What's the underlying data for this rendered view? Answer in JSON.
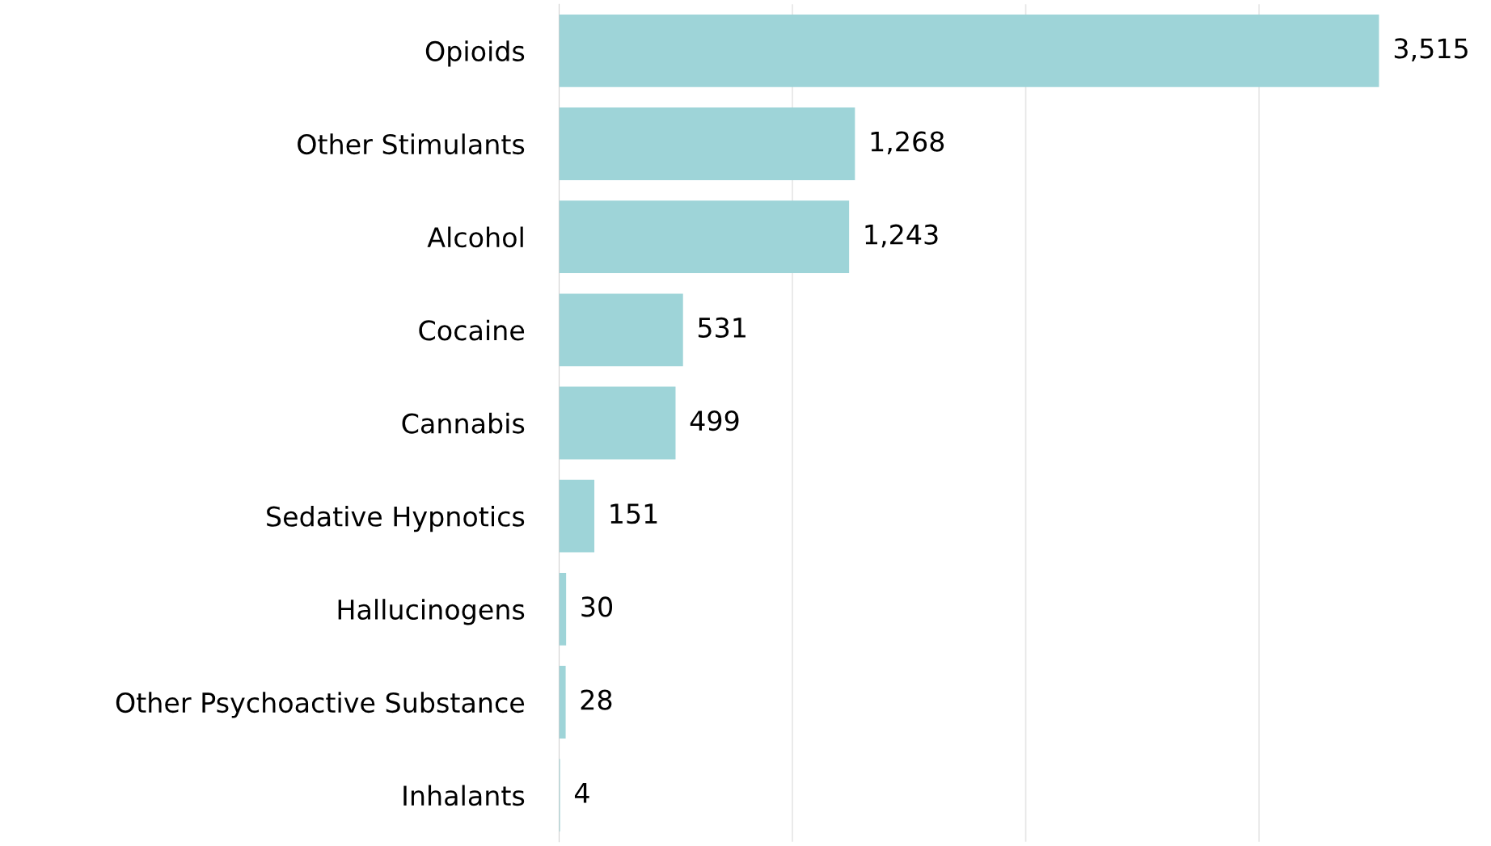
{
  "chart_data": {
    "type": "bar",
    "orientation": "horizontal",
    "categories": [
      "Opioids",
      "Other Stimulants",
      "Alcohol",
      "Cocaine",
      "Cannabis",
      "Sedative Hypnotics",
      "Hallucinogens",
      "Other Psychoactive Substance",
      "Inhalants"
    ],
    "values": [
      3515,
      1268,
      1243,
      531,
      499,
      151,
      30,
      28,
      4
    ],
    "value_labels": [
      "3,515",
      "1,268",
      "1,243",
      "531",
      "499",
      "151",
      "30",
      "28",
      "4"
    ],
    "color": "#9ed4d8",
    "xticks": [
      {
        "value": 1000,
        "label": null
      },
      {
        "value": 2000,
        "label": null
      },
      {
        "value": 3000,
        "label": null
      }
    ],
    "grid": "x",
    "tick_labels": "y"
  }
}
